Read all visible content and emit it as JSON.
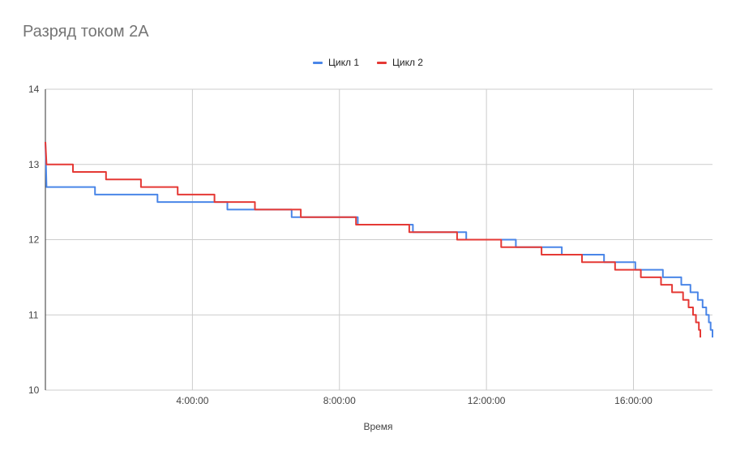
{
  "chart_data": {
    "type": "line",
    "title": "Разряд током 2А",
    "xlabel": "Время",
    "ylabel": "",
    "ylim": [
      10,
      14
    ],
    "yticks": [
      "10",
      "11",
      "12",
      "13",
      "14"
    ],
    "xlim_hours": [
      0,
      18.15
    ],
    "xticks": [
      "4:00:00",
      "8:00:00",
      "12:00:00",
      "16:00:00"
    ],
    "xtick_hours": [
      4,
      8,
      12,
      16
    ],
    "grid": true,
    "legend_position": "top",
    "series": [
      {
        "name": "Цикл 1",
        "color": "#4a86e8",
        "points": [
          [
            0,
            13.3
          ],
          [
            0.03,
            12.7
          ],
          [
            1.35,
            12.7
          ],
          [
            1.35,
            12.6
          ],
          [
            3.05,
            12.6
          ],
          [
            3.05,
            12.5
          ],
          [
            4.95,
            12.5
          ],
          [
            4.95,
            12.4
          ],
          [
            6.7,
            12.4
          ],
          [
            6.7,
            12.3
          ],
          [
            8.5,
            12.3
          ],
          [
            8.5,
            12.2
          ],
          [
            10.0,
            12.2
          ],
          [
            10.0,
            12.1
          ],
          [
            11.45,
            12.1
          ],
          [
            11.45,
            12.0
          ],
          [
            12.8,
            12.0
          ],
          [
            12.8,
            11.9
          ],
          [
            14.05,
            11.9
          ],
          [
            14.05,
            11.8
          ],
          [
            15.2,
            11.8
          ],
          [
            15.2,
            11.7
          ],
          [
            16.05,
            11.7
          ],
          [
            16.05,
            11.6
          ],
          [
            16.8,
            11.6
          ],
          [
            16.8,
            11.5
          ],
          [
            17.3,
            11.5
          ],
          [
            17.3,
            11.4
          ],
          [
            17.55,
            11.4
          ],
          [
            17.55,
            11.3
          ],
          [
            17.75,
            11.3
          ],
          [
            17.75,
            11.2
          ],
          [
            17.88,
            11.2
          ],
          [
            17.88,
            11.1
          ],
          [
            17.98,
            11.1
          ],
          [
            17.98,
            11.0
          ],
          [
            18.05,
            11.0
          ],
          [
            18.05,
            10.9
          ],
          [
            18.1,
            10.9
          ],
          [
            18.1,
            10.8
          ],
          [
            18.15,
            10.8
          ],
          [
            18.15,
            10.7
          ]
        ]
      },
      {
        "name": "Цикл 2",
        "color": "#e53935",
        "points": [
          [
            0,
            13.3
          ],
          [
            0.03,
            13.0
          ],
          [
            0.75,
            13.0
          ],
          [
            0.75,
            12.9
          ],
          [
            1.65,
            12.9
          ],
          [
            1.65,
            12.8
          ],
          [
            2.6,
            12.8
          ],
          [
            2.6,
            12.7
          ],
          [
            3.6,
            12.7
          ],
          [
            3.6,
            12.6
          ],
          [
            4.6,
            12.6
          ],
          [
            4.6,
            12.5
          ],
          [
            5.7,
            12.5
          ],
          [
            5.7,
            12.4
          ],
          [
            6.95,
            12.4
          ],
          [
            6.95,
            12.3
          ],
          [
            8.45,
            12.3
          ],
          [
            8.45,
            12.2
          ],
          [
            9.9,
            12.2
          ],
          [
            9.9,
            12.1
          ],
          [
            11.2,
            12.1
          ],
          [
            11.2,
            12.0
          ],
          [
            12.4,
            12.0
          ],
          [
            12.4,
            11.9
          ],
          [
            13.5,
            11.9
          ],
          [
            13.5,
            11.8
          ],
          [
            14.6,
            11.8
          ],
          [
            14.6,
            11.7
          ],
          [
            15.5,
            11.7
          ],
          [
            15.5,
            11.6
          ],
          [
            16.2,
            11.6
          ],
          [
            16.2,
            11.5
          ],
          [
            16.75,
            11.5
          ],
          [
            16.75,
            11.4
          ],
          [
            17.05,
            11.4
          ],
          [
            17.05,
            11.3
          ],
          [
            17.35,
            11.3
          ],
          [
            17.35,
            11.2
          ],
          [
            17.5,
            11.2
          ],
          [
            17.5,
            11.1
          ],
          [
            17.62,
            11.1
          ],
          [
            17.62,
            11.0
          ],
          [
            17.7,
            11.0
          ],
          [
            17.7,
            10.9
          ],
          [
            17.78,
            10.9
          ],
          [
            17.78,
            10.8
          ],
          [
            17.82,
            10.8
          ],
          [
            17.82,
            10.7
          ]
        ]
      }
    ]
  }
}
